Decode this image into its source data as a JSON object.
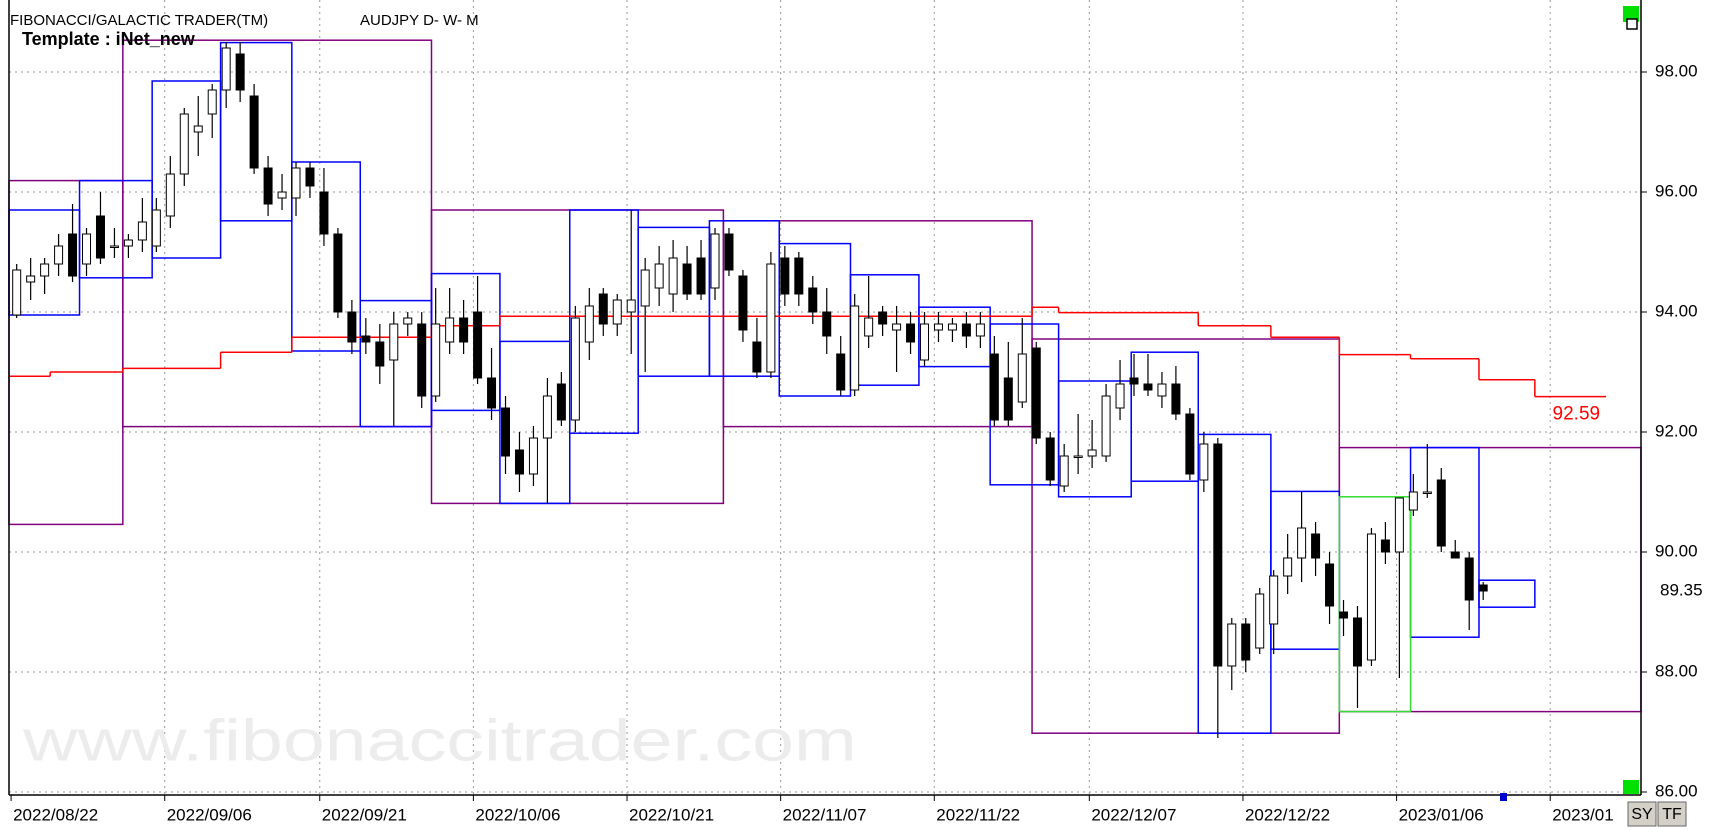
{
  "chart_data": {
    "type": "candlestick",
    "title": "FIBONACCI/GALACTIC TRADER(TM)",
    "subtitle": "AUDJPY D- W- M",
    "template": "Template : iNet_new",
    "watermark": "www.fibonaccitrader.com",
    "last_price": 89.35,
    "grid": true,
    "ylim": [
      85.95,
      99.2
    ],
    "yticks": [
      {
        "value": 86,
        "label": "86.00"
      },
      {
        "value": 88,
        "label": "88.00"
      },
      {
        "value": 90,
        "label": "90.00"
      },
      {
        "value": 92,
        "label": "92.00"
      },
      {
        "value": 94,
        "label": "94.00"
      },
      {
        "value": 96,
        "label": "96.00"
      },
      {
        "value": 98,
        "label": "98.00"
      }
    ],
    "xlim": [
      -0.55,
      116.3
    ],
    "xticks": [
      {
        "value": -0.4,
        "label": "2022/08/22"
      },
      {
        "value": 10.6,
        "label": "2022/09/06"
      },
      {
        "value": 21.7,
        "label": "2022/09/21"
      },
      {
        "value": 32.7,
        "label": "2022/10/06"
      },
      {
        "value": 43.7,
        "label": "2022/10/21"
      },
      {
        "value": 54.7,
        "label": "2022/11/07"
      },
      {
        "value": 65.7,
        "label": "2022/11/22"
      },
      {
        "value": 76.8,
        "label": "2022/12/07"
      },
      {
        "value": 87.8,
        "label": "2022/12/22"
      },
      {
        "value": 98.8,
        "label": "2023/01/06"
      },
      {
        "value": 109.8,
        "label": "2023/01"
      }
    ],
    "ohlc": [
      [
        93.95,
        94.8,
        93.9,
        94.7
      ],
      [
        94.5,
        94.9,
        94.2,
        94.6
      ],
      [
        94.6,
        94.9,
        94.3,
        94.8
      ],
      [
        94.8,
        95.3,
        94.6,
        95.1
      ],
      [
        95.3,
        95.8,
        94.5,
        94.6
      ],
      [
        94.8,
        95.4,
        94.6,
        95.3
      ],
      [
        95.6,
        96.0,
        94.8,
        94.9
      ],
      [
        95.1,
        95.4,
        94.9,
        95.1
      ],
      [
        95.1,
        95.3,
        94.9,
        95.2
      ],
      [
        95.2,
        95.9,
        95.0,
        95.5
      ],
      [
        95.1,
        95.9,
        95.0,
        95.7
      ],
      [
        95.6,
        96.6,
        95.4,
        96.3
      ],
      [
        96.3,
        97.4,
        96.1,
        97.3
      ],
      [
        97.0,
        97.6,
        96.6,
        97.1
      ],
      [
        97.3,
        97.8,
        96.9,
        97.7
      ],
      [
        97.7,
        98.5,
        97.4,
        98.4
      ],
      [
        98.3,
        98.5,
        97.5,
        97.7
      ],
      [
        97.6,
        97.8,
        96.3,
        96.4
      ],
      [
        96.4,
        96.6,
        95.6,
        95.8
      ],
      [
        95.9,
        96.3,
        95.7,
        96.0
      ],
      [
        95.9,
        96.5,
        95.6,
        96.4
      ],
      [
        96.4,
        96.5,
        95.9,
        96.1
      ],
      [
        96.0,
        96.4,
        95.1,
        95.3
      ],
      [
        95.3,
        95.4,
        93.9,
        94.0
      ],
      [
        94.0,
        94.2,
        93.3,
        93.5
      ],
      [
        93.6,
        93.9,
        93.3,
        93.5
      ],
      [
        93.5,
        93.8,
        92.8,
        93.1
      ],
      [
        93.2,
        94.0,
        92.1,
        93.8
      ],
      [
        93.8,
        94.0,
        93.6,
        93.9
      ],
      [
        93.8,
        94.0,
        92.4,
        92.6
      ],
      [
        92.6,
        94.4,
        92.5,
        93.8
      ],
      [
        93.5,
        94.4,
        93.3,
        93.9
      ],
      [
        93.9,
        94.2,
        93.3,
        93.5
      ],
      [
        94.0,
        94.6,
        92.8,
        92.9
      ],
      [
        92.9,
        93.4,
        92.2,
        92.4
      ],
      [
        92.4,
        92.6,
        91.3,
        91.6
      ],
      [
        91.7,
        92.0,
        91.0,
        91.3
      ],
      [
        91.3,
        92.1,
        91.1,
        91.9
      ],
      [
        91.9,
        92.9,
        90.8,
        92.6
      ],
      [
        92.8,
        93.0,
        92.1,
        92.2
      ],
      [
        92.2,
        94.1,
        92.0,
        93.9
      ],
      [
        93.5,
        94.4,
        93.2,
        94.1
      ],
      [
        94.3,
        94.4,
        93.6,
        93.8
      ],
      [
        93.8,
        94.3,
        93.6,
        94.2
      ],
      [
        94.0,
        95.7,
        93.3,
        94.2
      ],
      [
        94.1,
        94.9,
        93.0,
        94.7
      ],
      [
        94.4,
        95.1,
        94.1,
        94.8
      ],
      [
        94.3,
        95.2,
        94.0,
        94.9
      ],
      [
        94.8,
        95.1,
        94.2,
        94.3
      ],
      [
        94.9,
        95.2,
        94.2,
        94.3
      ],
      [
        94.4,
        95.4,
        94.2,
        95.3
      ],
      [
        95.3,
        95.4,
        94.6,
        94.7
      ],
      [
        94.6,
        94.7,
        93.5,
        93.7
      ],
      [
        93.5,
        93.9,
        92.9,
        93.0
      ],
      [
        93.0,
        95.0,
        92.9,
        94.8
      ],
      [
        94.9,
        95.1,
        94.1,
        94.3
      ],
      [
        94.9,
        95.0,
        94.1,
        94.3
      ],
      [
        94.4,
        94.6,
        93.8,
        94.0
      ],
      [
        94.0,
        94.4,
        93.3,
        93.6
      ],
      [
        93.3,
        93.6,
        92.6,
        92.7
      ],
      [
        92.7,
        94.3,
        92.6,
        94.1
      ],
      [
        93.6,
        94.6,
        93.4,
        93.9
      ],
      [
        94.0,
        94.1,
        93.6,
        93.8
      ],
      [
        93.7,
        94.1,
        93.0,
        93.8
      ],
      [
        93.8,
        94.0,
        93.3,
        93.5
      ],
      [
        93.2,
        94.0,
        93.1,
        93.8
      ],
      [
        93.7,
        94.0,
        93.5,
        93.8
      ],
      [
        93.7,
        93.9,
        93.5,
        93.8
      ],
      [
        93.8,
        94.0,
        93.4,
        93.6
      ],
      [
        93.6,
        94.0,
        93.4,
        93.8
      ],
      [
        93.3,
        93.6,
        92.1,
        92.2
      ],
      [
        92.9,
        93.5,
        92.1,
        92.2
      ],
      [
        92.5,
        93.9,
        92.4,
        93.3
      ],
      [
        93.4,
        93.5,
        91.8,
        91.9
      ],
      [
        91.9,
        92.0,
        91.1,
        91.2
      ],
      [
        91.1,
        91.8,
        91.0,
        91.6
      ],
      [
        91.6,
        92.3,
        91.3,
        91.6
      ],
      [
        91.6,
        92.2,
        91.4,
        91.7
      ],
      [
        91.6,
        92.8,
        91.5,
        92.6
      ],
      [
        92.4,
        93.2,
        92.2,
        92.8
      ],
      [
        92.9,
        93.3,
        92.6,
        92.8
      ],
      [
        92.8,
        93.3,
        92.6,
        92.7
      ],
      [
        92.6,
        93.0,
        92.4,
        92.8
      ],
      [
        92.8,
        93.1,
        92.2,
        92.3
      ],
      [
        92.3,
        92.4,
        91.2,
        91.3
      ],
      [
        91.2,
        92.0,
        91.0,
        91.8
      ],
      [
        91.8,
        91.9,
        86.9,
        88.1
      ],
      [
        88.1,
        88.9,
        87.7,
        88.8
      ],
      [
        88.8,
        88.9,
        88.0,
        88.2
      ],
      [
        88.4,
        89.4,
        88.3,
        89.3
      ],
      [
        88.8,
        89.7,
        88.3,
        89.6
      ],
      [
        89.6,
        90.3,
        89.3,
        89.9
      ],
      [
        89.9,
        91.0,
        89.5,
        90.4
      ],
      [
        90.3,
        90.5,
        89.6,
        89.9
      ],
      [
        89.8,
        90.0,
        88.8,
        89.1
      ],
      [
        89.0,
        89.2,
        88.6,
        88.9
      ],
      [
        88.9,
        89.1,
        87.4,
        88.1
      ],
      [
        88.2,
        90.4,
        88.1,
        90.3
      ],
      [
        90.2,
        90.5,
        89.8,
        90.0
      ],
      [
        90.0,
        90.9,
        87.9,
        90.9
      ],
      [
        90.7,
        91.3,
        90.6,
        91.0
      ],
      [
        91.0,
        91.8,
        90.9,
        91.0
      ],
      [
        91.2,
        91.4,
        90.0,
        90.1
      ],
      [
        90.0,
        90.2,
        89.9,
        89.9
      ],
      [
        89.9,
        90.0,
        88.7,
        89.2
      ],
      [
        89.45,
        89.5,
        89.2,
        89.35
      ]
    ],
    "up_color": "#ffffff",
    "down_color": "#000000",
    "line": {
      "color": "#ff0000",
      "x": [
        -0.55,
        2.4,
        7.6,
        14.6,
        19.7,
        29.7,
        34.6,
        72.7,
        74.6,
        84.6,
        89.8,
        94.7,
        99.8,
        104.7,
        108.7,
        113.8
      ],
      "values": [
        92.93,
        93.0,
        93.06,
        93.33,
        93.58,
        93.77,
        93.93,
        94.08,
        93.99,
        93.77,
        93.58,
        93.29,
        93.22,
        92.87,
        92.59,
        92.59
      ]
    },
    "boxes": [
      {
        "color": "#800080",
        "rects": [
          [
            -0.55,
            7.6,
            90.46,
            96.19
          ],
          [
            7.6,
            29.7,
            92.09,
            98.53
          ],
          [
            29.7,
            50.6,
            90.81,
            95.7
          ],
          [
            50.6,
            72.7,
            92.09,
            95.52
          ],
          [
            72.7,
            94.7,
            86.98,
            93.55
          ],
          [
            94.7,
            116.3,
            87.34,
            91.74
          ]
        ]
      },
      {
        "color": "#0000ff",
        "rects": [
          [
            -0.55,
            4.5,
            93.95,
            95.7
          ],
          [
            4.5,
            9.7,
            94.57,
            96.19
          ],
          [
            9.7,
            14.6,
            94.9,
            97.85
          ],
          [
            14.6,
            19.7,
            95.52,
            98.49
          ],
          [
            19.7,
            24.6,
            93.35,
            96.5
          ],
          [
            24.6,
            29.7,
            92.09,
            94.19
          ],
          [
            29.7,
            34.6,
            92.36,
            94.64
          ],
          [
            34.6,
            39.6,
            90.81,
            93.51
          ],
          [
            39.6,
            44.5,
            91.98,
            95.7
          ],
          [
            44.5,
            49.6,
            92.93,
            95.41
          ],
          [
            49.6,
            54.6,
            92.93,
            95.52
          ],
          [
            54.6,
            59.7,
            92.6,
            95.14
          ],
          [
            59.7,
            64.6,
            92.78,
            94.62
          ],
          [
            64.6,
            69.7,
            93.09,
            94.08
          ],
          [
            69.7,
            74.6,
            91.12,
            93.8
          ],
          [
            74.6,
            79.8,
            90.92,
            92.85
          ],
          [
            79.8,
            84.6,
            91.18,
            93.33
          ],
          [
            84.6,
            89.8,
            86.98,
            91.96
          ],
          [
            89.8,
            94.7,
            88.38,
            91.01
          ],
          [
            99.8,
            104.7,
            88.58,
            91.74
          ],
          [
            104.7,
            108.7,
            89.08,
            89.53
          ]
        ]
      },
      {
        "color": "#33dd33",
        "rects": [
          [
            94.7,
            99.8,
            87.34,
            90.92
          ]
        ]
      }
    ],
    "buttons": [
      "SY",
      "TF"
    ]
  }
}
